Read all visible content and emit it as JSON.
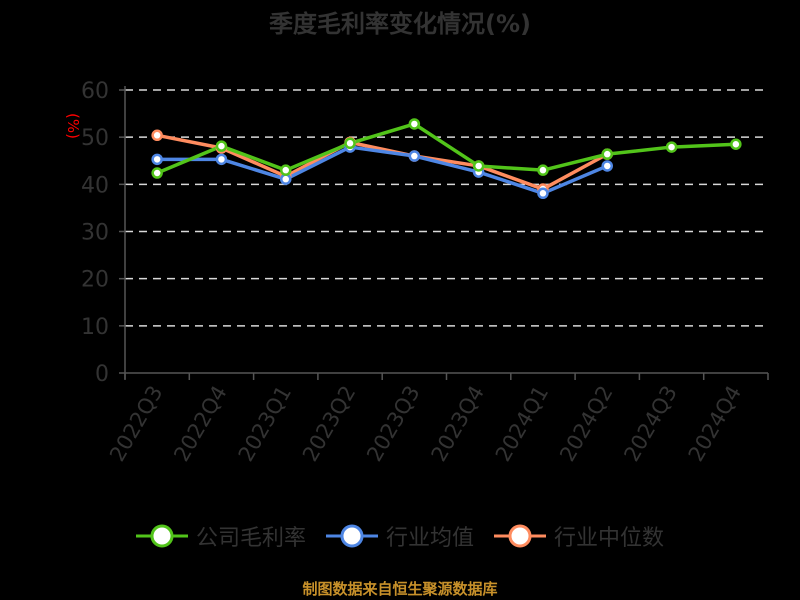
{
  "title": "季度毛利率变化情况(%)",
  "y_unit_label": "(%)",
  "source_note": "制图数据来自恒生聚源数据库",
  "colors": {
    "company": "#52c41a",
    "industry_avg": "#4e86e4",
    "industry_median": "#ff8c5f",
    "axis": "#555555",
    "grid": "#d9d9d9",
    "tick_label": "#333333",
    "unit_label": "#ff0000",
    "source": "#c8912a"
  },
  "legend": [
    {
      "name": "公司毛利率",
      "color": "#52c41a"
    },
    {
      "name": "行业均值",
      "color": "#4e86e4"
    },
    {
      "name": "行业中位数",
      "color": "#ff8c5f"
    }
  ],
  "chart_data": {
    "type": "line",
    "title": "季度毛利率变化情况(%)",
    "xlabel": "",
    "ylabel": "(%)",
    "ylim": [
      0,
      60
    ],
    "yticks": [
      0,
      10,
      20,
      30,
      40,
      50,
      60
    ],
    "grid": true,
    "legend_position": "bottom",
    "categories": [
      "2022Q3",
      "2022Q4",
      "2023Q1",
      "2023Q2",
      "2023Q3",
      "2023Q4",
      "2024Q1",
      "2024Q2",
      "2024Q3",
      "2024Q4"
    ],
    "series": [
      {
        "name": "公司毛利率",
        "color": "#52c41a",
        "values": [
          42.4,
          48.1,
          43.0,
          48.7,
          52.8,
          43.9,
          43.0,
          46.4,
          47.9,
          48.5
        ]
      },
      {
        "name": "行业均值",
        "color": "#4e86e4",
        "values": [
          45.3,
          45.3,
          41.1,
          47.9,
          46.0,
          42.6,
          38.1,
          43.9,
          null,
          null
        ]
      },
      {
        "name": "行业中位数",
        "color": "#ff8c5f",
        "values": [
          50.4,
          47.7,
          41.7,
          48.9,
          46.0,
          43.9,
          39.0,
          46.4,
          null,
          null
        ]
      }
    ]
  }
}
